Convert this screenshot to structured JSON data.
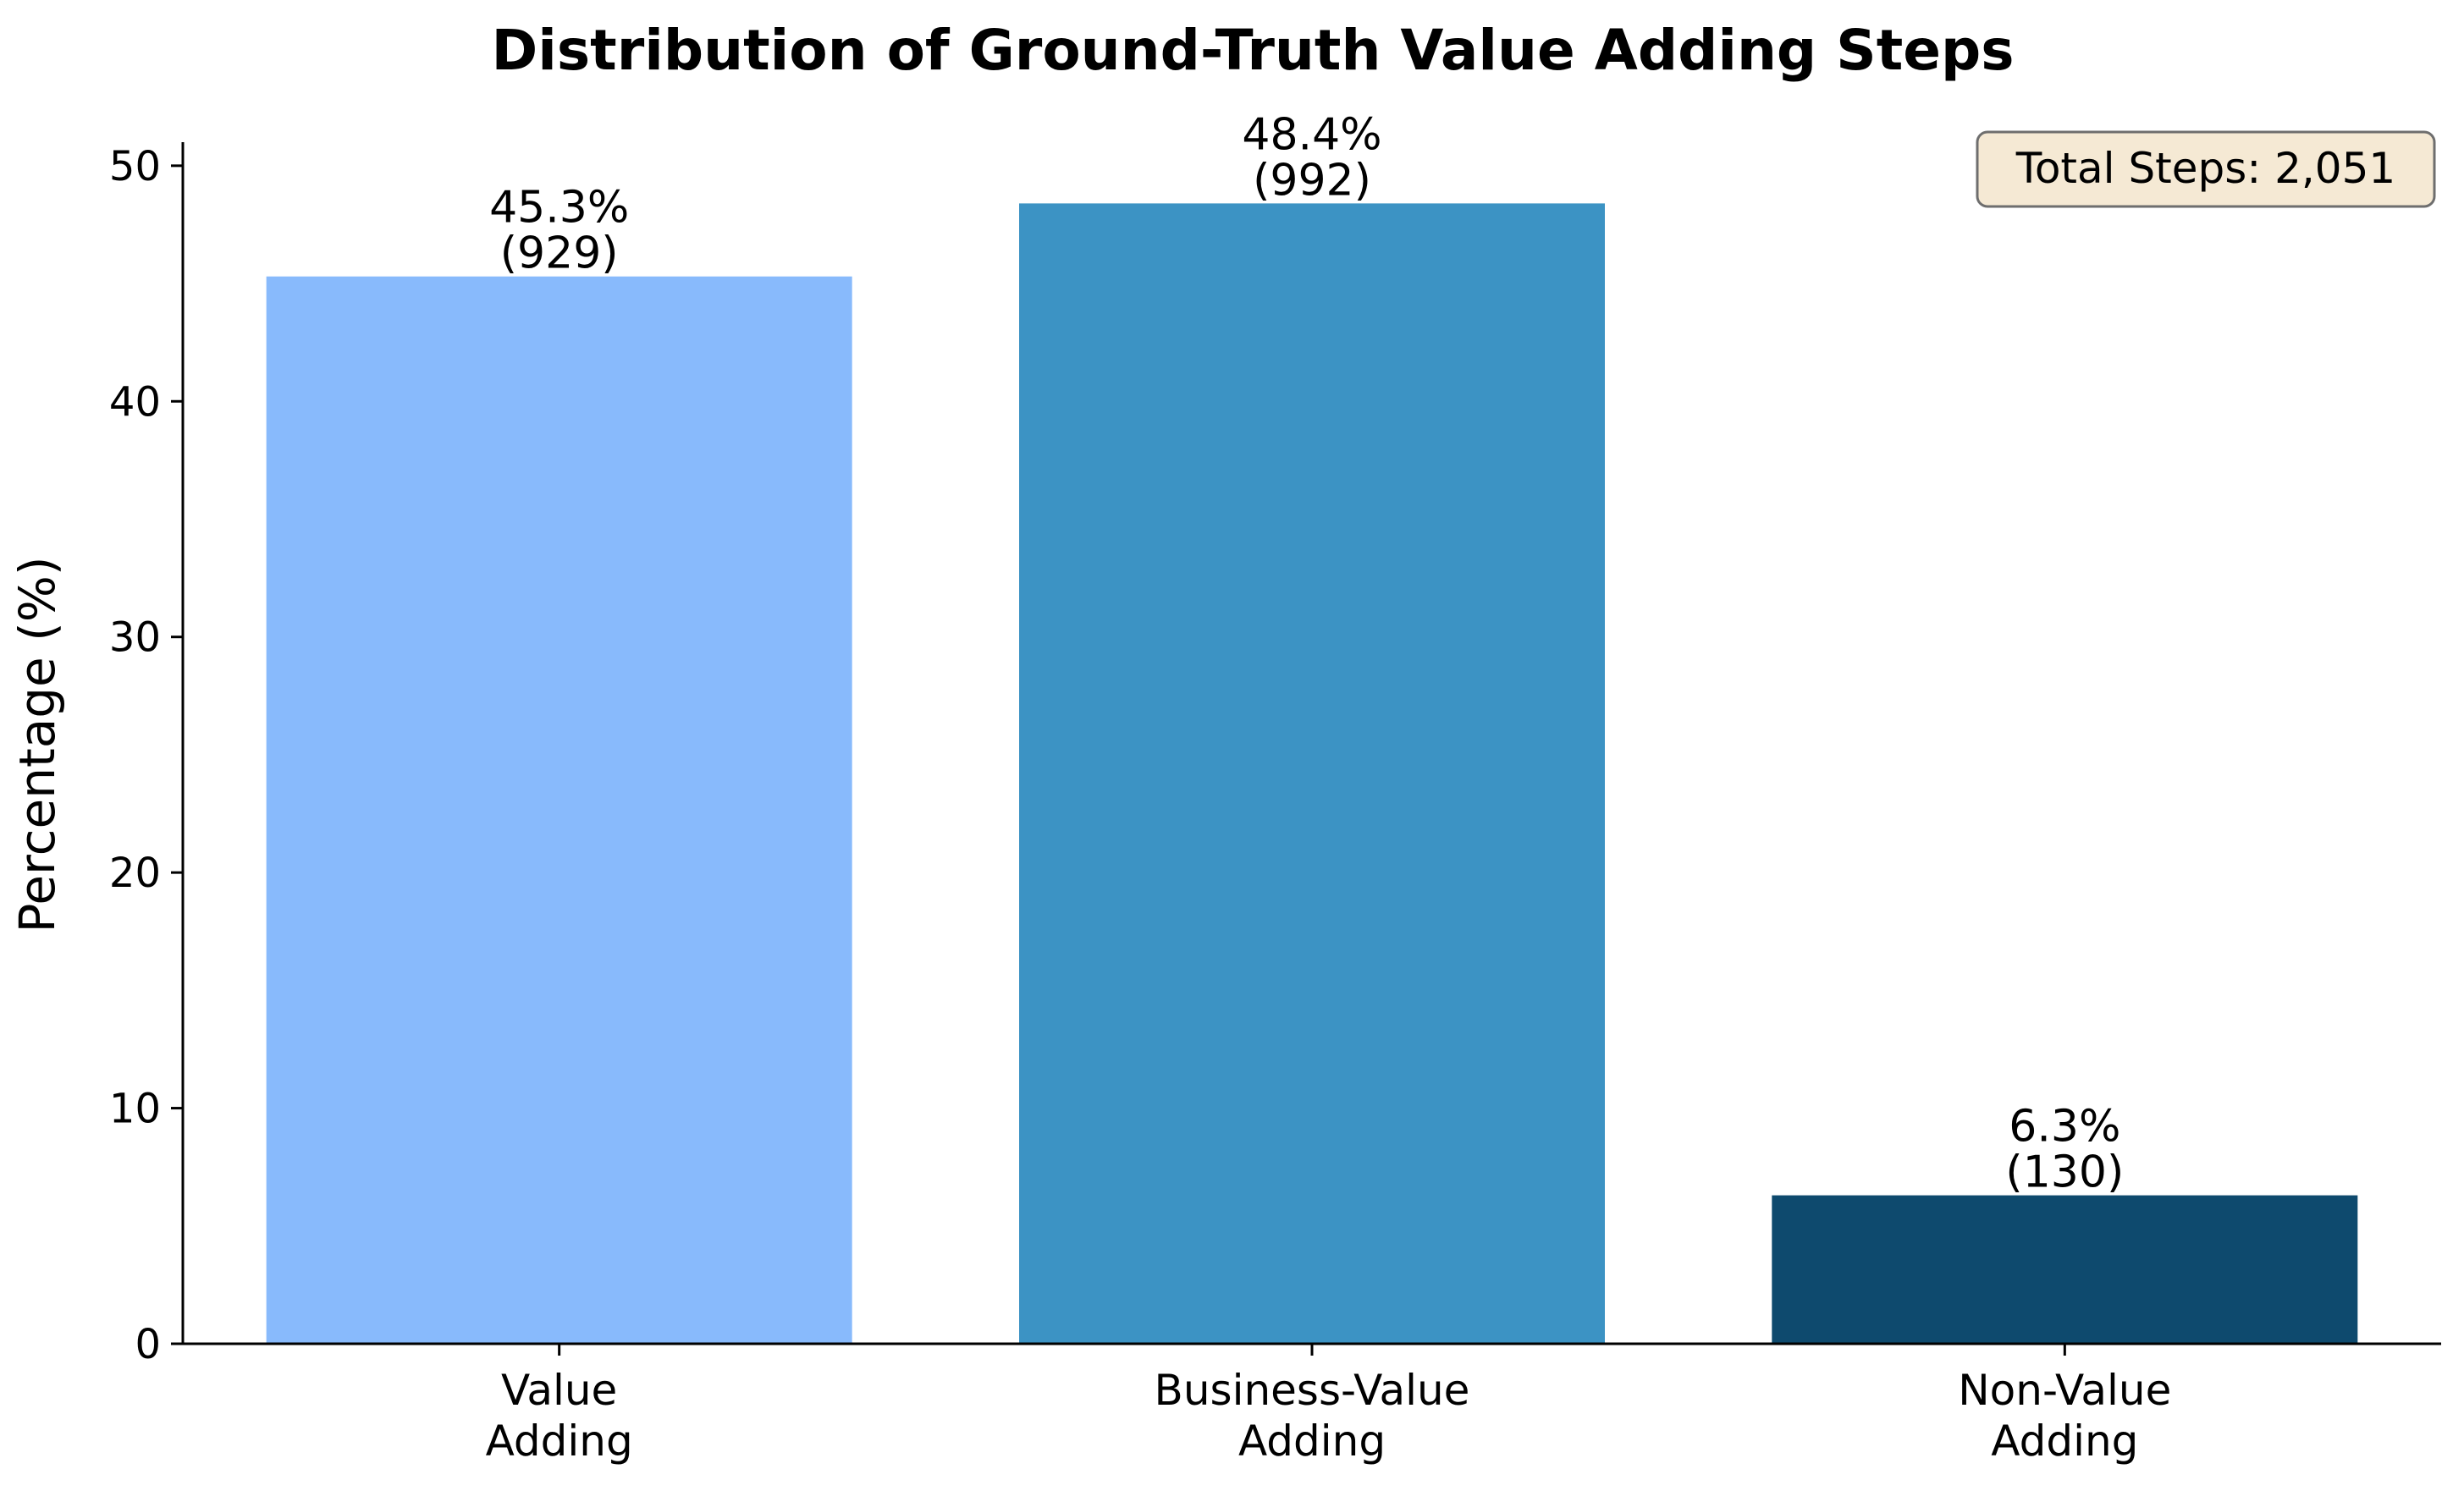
{
  "chart_data": {
    "type": "bar",
    "title": "Distribution of Ground-Truth Value Adding Steps",
    "xlabel": "",
    "ylabel": "Percentage (%)",
    "ylim": [
      0,
      51
    ],
    "yticks": [
      0,
      10,
      20,
      30,
      40,
      50
    ],
    "grid": false,
    "legend": "none",
    "categories": [
      [
        "Value",
        "Adding"
      ],
      [
        "Business-Value",
        "Adding"
      ],
      [
        "Non-Value",
        "Adding"
      ]
    ],
    "values": [
      45.3,
      48.4,
      6.3
    ],
    "counts": [
      929,
      992,
      130
    ],
    "data_labels": [
      [
        "45.3%",
        "(929)"
      ],
      [
        "48.4%",
        "(992)"
      ],
      [
        "6.3%",
        "(130)"
      ]
    ],
    "colors": [
      "#88BAFC",
      "#3C93C4",
      "#0E4A6E"
    ],
    "annotation": {
      "text": "Total Steps: 2,051",
      "position": "top-right",
      "background": "#F5E9D4",
      "border": "#6E6E6E"
    }
  }
}
